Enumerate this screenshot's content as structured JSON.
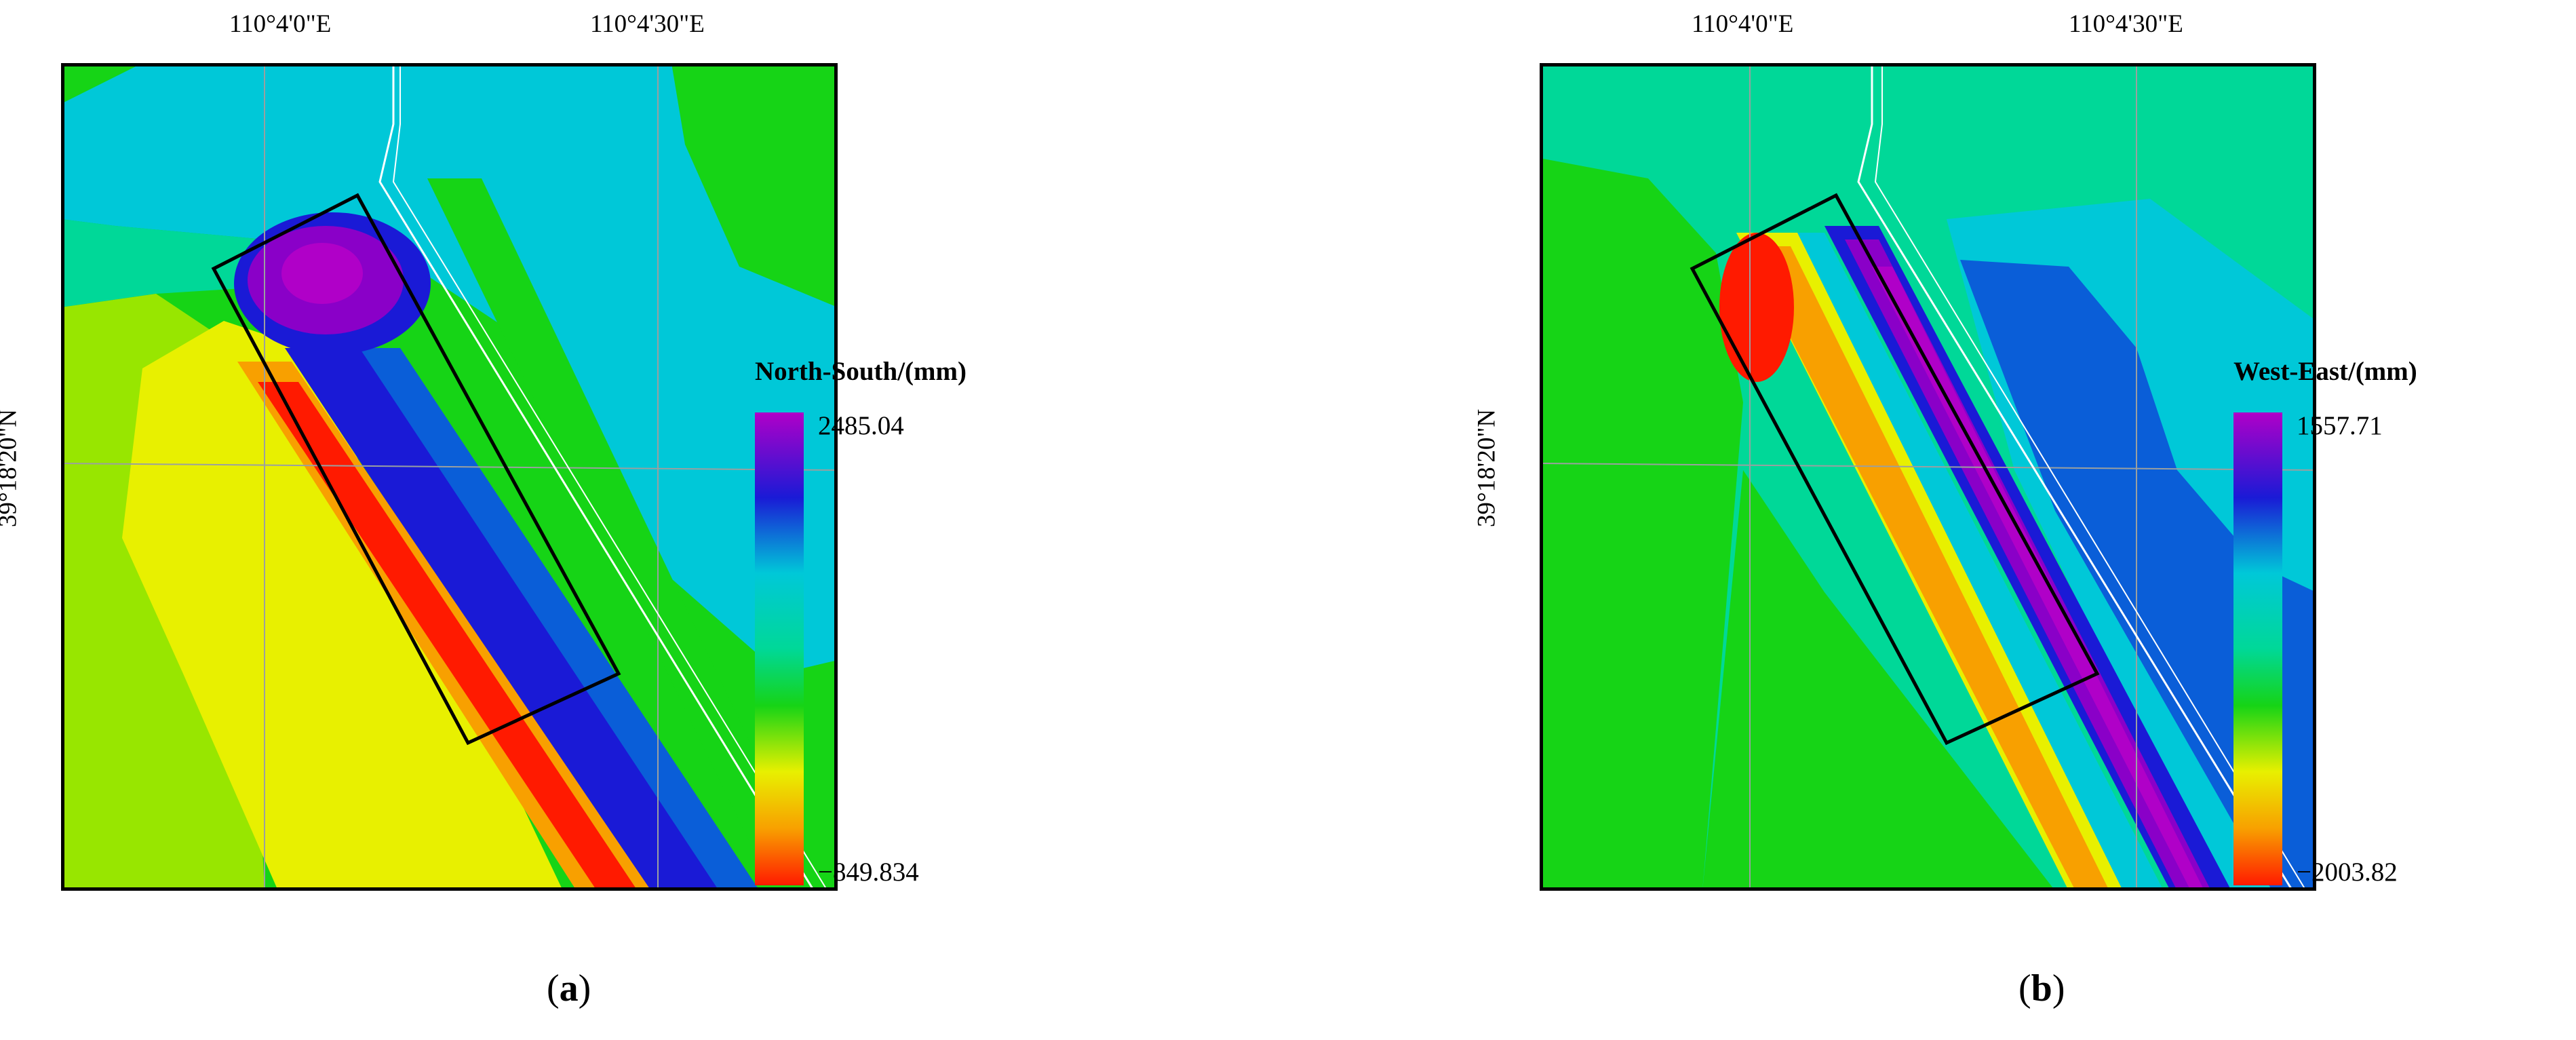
{
  "colors": {
    "scale": [
      "#e000e0",
      "#8a00c8",
      "#1a1ad6",
      "#0a5ed8",
      "#00c8d8",
      "#00d898",
      "#16d416",
      "#98e600",
      "#e8f000",
      "#f8a000",
      "#ff1a00"
    ],
    "frame": "#000000",
    "road": "#ffffff",
    "grid": "#9aa0a0"
  },
  "panels": [
    {
      "id": "a",
      "lon_labels": [
        "110°4'0\"E",
        "110°4'30\"E"
      ],
      "lat_label": "39°18'20\"N",
      "legend": {
        "title": "North-South/(mm)",
        "max": "2485.04",
        "min": "−849.834"
      },
      "label": {
        "open": "(",
        "letter": "a",
        "close": ")"
      }
    },
    {
      "id": "b",
      "lon_labels": [
        "110°4'0\"E",
        "110°4'30\"E"
      ],
      "lat_label": "39°18'20\"N",
      "legend": {
        "title": "West-East/(mm)",
        "max": "1557.71",
        "min": "−2003.82"
      },
      "label": {
        "open": "(",
        "letter": "b",
        "close": ")"
      }
    }
  ]
}
